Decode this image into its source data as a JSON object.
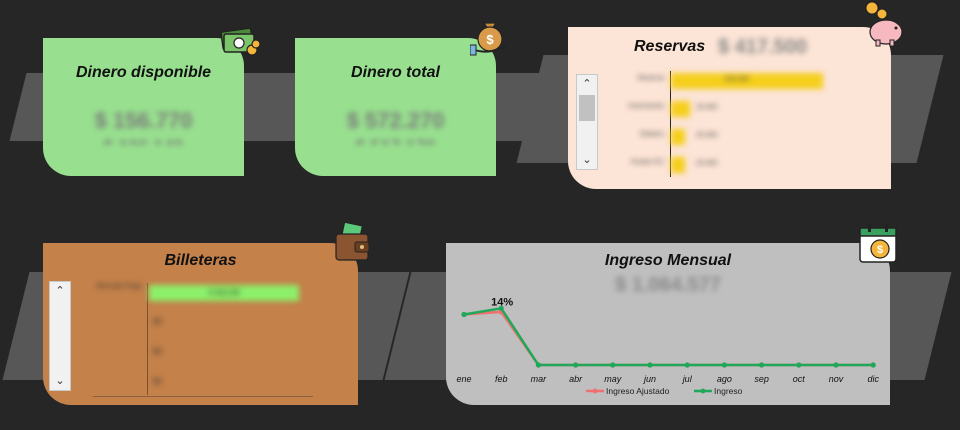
{
  "cards": {
    "available": {
      "title": "Dinero disponible",
      "amount": "$ 156.770",
      "sub": "$ 106.140"
    },
    "total": {
      "title": "Dinero total",
      "amount": "$ 572.270",
      "sub": "$ 517.170"
    },
    "reserves": {
      "title": "Reservas",
      "amount": "$ 417.500",
      "rows": [
        {
          "label": "Reserva",
          "value": "150.000",
          "fill": 0.95
        },
        {
          "label": "Inversiones",
          "value": "25.000",
          "fill": 0.12
        },
        {
          "label": "Dólares",
          "value": "25.000",
          "fill": 0.09
        },
        {
          "label": "Fondo FCI",
          "value": "25.000",
          "fill": 0.09
        }
      ]
    },
    "wallets": {
      "title": "Billeteras",
      "row_label": "Mercado Pago",
      "bar_value": "2.312,50",
      "values": [
        "$0",
        "$0",
        "$0"
      ]
    },
    "monthly": {
      "title": "Ingreso Mensual",
      "amount": "$ 1.064.577",
      "annotation": "14%"
    }
  },
  "chart_data": {
    "type": "line",
    "categories": [
      "ene",
      "feb",
      "mar",
      "abr",
      "may",
      "jun",
      "jul",
      "ago",
      "sep",
      "oct",
      "nov",
      "dic"
    ],
    "series": [
      {
        "name": "Ingreso Ajustado",
        "color": "#f07070",
        "values": [
          570,
          600,
          0,
          0,
          0,
          0,
          0,
          0,
          0,
          0,
          0,
          0
        ]
      },
      {
        "name": "Ingreso",
        "color": "#1fa85a",
        "values": [
          570,
          640,
          0,
          0,
          0,
          0,
          0,
          0,
          0,
          0,
          0,
          0
        ]
      }
    ],
    "annotation": "14%",
    "ylim": [
      0,
      700
    ],
    "grid": false,
    "legend": "bottom"
  },
  "colors": {
    "green_card": "#98e08f",
    "peach_card": "#fce4d6",
    "brown_card": "#c4814a",
    "gray_card": "#bfbfbf",
    "band": "#575757"
  },
  "icons": [
    "money-bills-icon",
    "money-bag-hand-icon",
    "piggy-bank-icon",
    "wallet-icon",
    "calendar-coin-icon"
  ]
}
